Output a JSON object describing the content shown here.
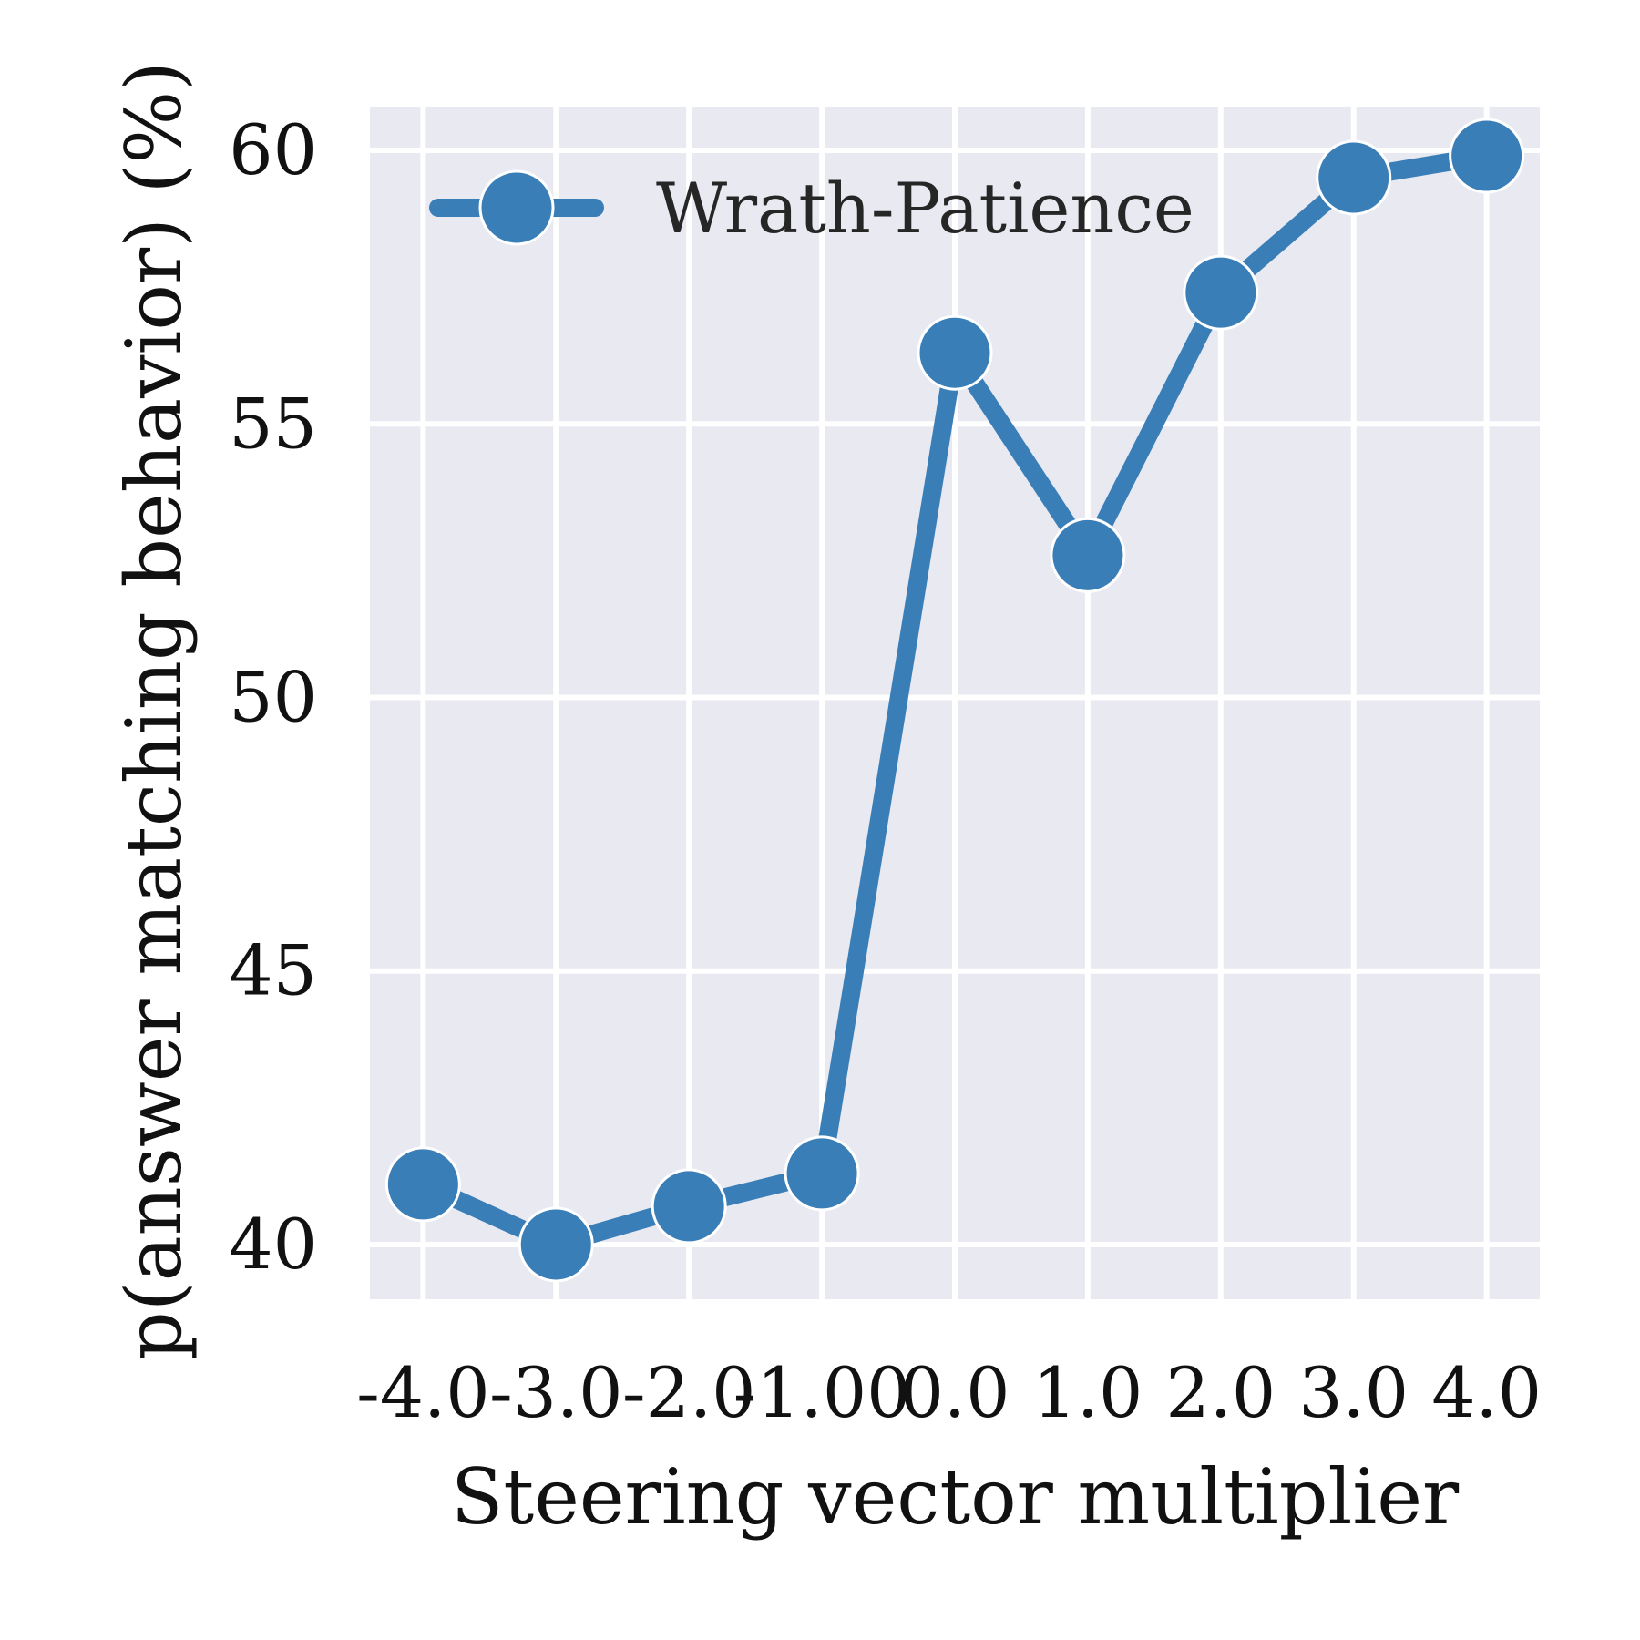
{
  "chart_data": {
    "type": "line",
    "xlabel": "Steering vector multiplier",
    "ylabel": "p(answer matching behavior) (%)",
    "x": [
      -4.0,
      -3.0,
      -2.0,
      -1.0,
      0.0,
      1.0,
      2.0,
      3.0,
      4.0
    ],
    "x_tick_labels": [
      "-4.0",
      "-3.0",
      "-2.0",
      "-1.00",
      "0.0",
      "1.0",
      "2.0",
      "3.0",
      "4.0"
    ],
    "y_ticks": [
      40,
      45,
      50,
      55,
      60
    ],
    "xlim": [
      -4.4,
      4.4
    ],
    "ylim": [
      39.0,
      60.8
    ],
    "grid": true,
    "legend_position": "top",
    "series": [
      {
        "name": "Wrath-Patience",
        "color": "#3a7eb8",
        "values": [
          41.1,
          40.0,
          40.7,
          41.3,
          56.3,
          52.6,
          57.4,
          59.5,
          59.9
        ]
      }
    ]
  },
  "style": {
    "plot_background": "#e8e9f1",
    "grid_color": "#ffffff"
  }
}
